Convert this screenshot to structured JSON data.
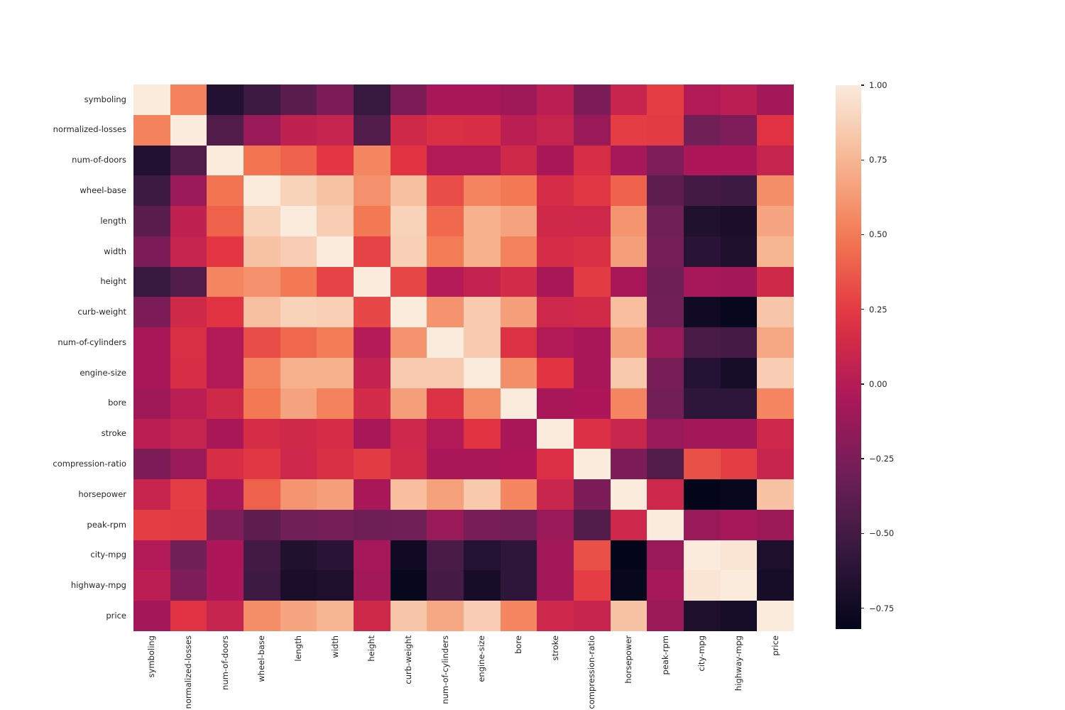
{
  "figure": {
    "background": "#ffffff",
    "text_color": "#262626",
    "title": ""
  },
  "chart_data": {
    "type": "heatmap",
    "title": "",
    "xlabel": "",
    "ylabel": "",
    "grid": false,
    "legend_position": "colorbar-right",
    "categories": [
      "symboling",
      "normalized-losses",
      "num-of-doors",
      "wheel-base",
      "length",
      "width",
      "height",
      "curb-weight",
      "num-of-cylinders",
      "engine-size",
      "bore",
      "stroke",
      "compression-ratio",
      "horsepower",
      "peak-rpm",
      "city-mpg",
      "highway-mpg",
      "price"
    ],
    "matrix": [
      [
        1.0,
        0.53,
        -0.66,
        -0.53,
        -0.39,
        -0.25,
        -0.55,
        -0.25,
        -0.05,
        -0.05,
        -0.1,
        0.03,
        -0.25,
        0.09,
        0.26,
        -0.02,
        0.03,
        -0.08
      ],
      [
        0.53,
        1.0,
        -0.43,
        -0.12,
        0.05,
        0.08,
        -0.44,
        0.13,
        0.18,
        0.17,
        0.03,
        0.08,
        -0.13,
        0.26,
        0.25,
        -0.3,
        -0.24,
        0.21
      ],
      [
        -0.66,
        -0.43,
        1.0,
        0.47,
        0.4,
        0.23,
        0.55,
        0.22,
        -0.02,
        -0.02,
        0.13,
        -0.06,
        0.17,
        -0.07,
        -0.24,
        -0.04,
        -0.04,
        0.08
      ],
      [
        -0.53,
        -0.12,
        0.47,
        1.0,
        0.88,
        0.81,
        0.59,
        0.8,
        0.32,
        0.54,
        0.49,
        0.16,
        0.24,
        0.4,
        -0.38,
        -0.5,
        -0.53,
        0.58
      ],
      [
        -0.39,
        0.05,
        0.4,
        0.88,
        1.0,
        0.86,
        0.49,
        0.88,
        0.43,
        0.73,
        0.67,
        0.13,
        0.12,
        0.61,
        -0.3,
        -0.67,
        -0.7,
        0.68
      ],
      [
        -0.25,
        0.08,
        0.23,
        0.81,
        0.86,
        1.0,
        0.28,
        0.87,
        0.5,
        0.73,
        0.53,
        0.16,
        0.18,
        0.65,
        -0.28,
        -0.62,
        -0.68,
        0.75
      ],
      [
        -0.55,
        -0.44,
        0.55,
        0.59,
        0.49,
        0.28,
        1.0,
        0.3,
        0.0,
        0.07,
        0.15,
        -0.06,
        0.25,
        -0.06,
        -0.31,
        -0.07,
        -0.08,
        0.13
      ],
      [
        -0.25,
        0.13,
        0.22,
        0.8,
        0.88,
        0.87,
        0.3,
        1.0,
        0.6,
        0.85,
        0.65,
        0.12,
        0.14,
        0.79,
        -0.3,
        -0.75,
        -0.8,
        0.82
      ],
      [
        -0.05,
        0.18,
        -0.02,
        0.32,
        0.43,
        0.5,
        0.0,
        0.6,
        1.0,
        0.85,
        0.2,
        -0.02,
        -0.05,
        0.66,
        -0.13,
        -0.47,
        -0.49,
        0.69
      ],
      [
        -0.05,
        0.17,
        -0.02,
        0.54,
        0.73,
        0.73,
        0.07,
        0.85,
        0.85,
        1.0,
        0.58,
        0.22,
        -0.05,
        0.84,
        -0.27,
        -0.65,
        -0.71,
        0.86
      ],
      [
        -0.1,
        0.03,
        0.13,
        0.49,
        0.67,
        0.53,
        0.15,
        0.65,
        0.2,
        0.58,
        1.0,
        -0.06,
        -0.04,
        0.55,
        -0.29,
        -0.6,
        -0.6,
        0.55
      ],
      [
        0.03,
        0.08,
        -0.06,
        0.16,
        0.13,
        0.16,
        -0.06,
        0.12,
        -0.02,
        0.22,
        -0.06,
        1.0,
        0.19,
        0.1,
        -0.13,
        -0.08,
        -0.08,
        0.12
      ],
      [
        -0.25,
        -0.13,
        0.17,
        0.24,
        0.12,
        0.18,
        0.25,
        0.14,
        -0.05,
        -0.05,
        -0.04,
        0.19,
        1.0,
        -0.25,
        -0.43,
        0.33,
        0.26,
        0.09
      ],
      [
        0.09,
        0.26,
        -0.07,
        0.4,
        0.61,
        0.65,
        -0.06,
        0.79,
        0.66,
        0.84,
        0.55,
        0.1,
        -0.25,
        1.0,
        0.12,
        -0.82,
        -0.8,
        0.81
      ],
      [
        0.26,
        0.25,
        -0.24,
        -0.38,
        -0.3,
        -0.28,
        -0.31,
        -0.3,
        -0.13,
        -0.27,
        -0.29,
        -0.13,
        -0.43,
        0.12,
        1.0,
        -0.12,
        -0.07,
        -0.11
      ],
      [
        -0.02,
        -0.3,
        -0.04,
        -0.5,
        -0.67,
        -0.62,
        -0.07,
        -0.75,
        -0.47,
        -0.65,
        -0.6,
        -0.08,
        0.33,
        -0.82,
        -0.12,
        1.0,
        0.97,
        -0.68
      ],
      [
        0.03,
        -0.24,
        -0.04,
        -0.53,
        -0.7,
        -0.68,
        -0.08,
        -0.8,
        -0.49,
        -0.71,
        -0.6,
        -0.08,
        0.26,
        -0.8,
        -0.07,
        0.97,
        1.0,
        -0.71
      ],
      [
        -0.08,
        0.21,
        0.08,
        0.58,
        0.68,
        0.75,
        0.13,
        0.82,
        0.69,
        0.86,
        0.55,
        0.12,
        0.09,
        0.81,
        -0.11,
        -0.68,
        -0.71,
        1.0
      ]
    ],
    "vmin": -0.82,
    "vmax": 1.0,
    "colormap": "rocket",
    "colormap_stops": [
      {
        "t": 0.0,
        "color": "#03051A"
      },
      {
        "t": 0.143,
        "color": "#35193E"
      },
      {
        "t": 0.286,
        "color": "#701F57"
      },
      {
        "t": 0.429,
        "color": "#AD1759"
      },
      {
        "t": 0.571,
        "color": "#E13342"
      },
      {
        "t": 0.714,
        "color": "#F37651"
      },
      {
        "t": 0.857,
        "color": "#F6B48F"
      },
      {
        "t": 1.0,
        "color": "#FAEBDD"
      }
    ],
    "colorbar": {
      "position": "right",
      "ticks": [
        1.0,
        0.75,
        0.5,
        0.25,
        0.0,
        -0.25,
        -0.5,
        -0.75
      ],
      "tick_labels": [
        "1.00",
        "0.75",
        "0.50",
        "0.25",
        "0.00",
        "−0.25",
        "−0.50",
        "−0.75"
      ]
    }
  }
}
